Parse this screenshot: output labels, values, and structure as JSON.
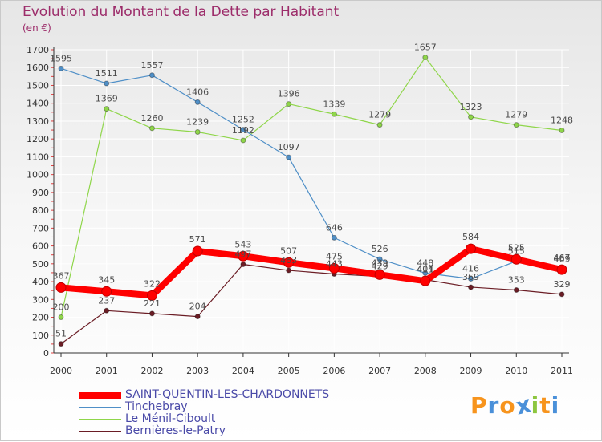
{
  "header": {
    "title": "Evolution du Montant de la Dette par Habitant",
    "subtitle": "(en €)"
  },
  "brand": {
    "name": "Proxiti",
    "letters": [
      "P",
      "r",
      "o",
      "x",
      "i",
      "t",
      "i"
    ],
    "letter_colors": [
      "#f7941d",
      "#4a90d9",
      "#f7941d",
      "#4a90d9",
      "#8dc63f",
      "#f7941d",
      "#4a90d9"
    ]
  },
  "colors": {
    "title": "#9c2c6a",
    "legend_text": "#4a4aa8",
    "axis": "#333333",
    "gridline": "#ffffff"
  },
  "chart_data": {
    "type": "line",
    "title": "Evolution du Montant de la Dette par Habitant",
    "ylabel": "(en €)",
    "xlabel": "",
    "x": [
      "2000",
      "2001",
      "2002",
      "2003",
      "2004",
      "2005",
      "2006",
      "2007",
      "2008",
      "2009",
      "2010",
      "2011"
    ],
    "ylim": [
      0,
      1700
    ],
    "yticks": [
      0,
      100,
      200,
      300,
      400,
      500,
      600,
      700,
      800,
      900,
      1000,
      1100,
      1200,
      1300,
      1400,
      1500,
      1600,
      1700
    ],
    "grid": true,
    "legend_position": "bottom-left",
    "series": [
      {
        "name": "SAINT-QUENTIN-LES-CHARDONNETS",
        "color": "#ff0000",
        "emphasis": "thick",
        "values": [
          367,
          345,
          322,
          571,
          543,
          507,
          475,
          439,
          404,
          584,
          525,
          467
        ]
      },
      {
        "name": "Tinchebray",
        "color": "#4f8fc7",
        "emphasis": "normal",
        "values": [
          1595,
          1511,
          1557,
          1406,
          1252,
          1097,
          646,
          526,
          448,
          416,
          515,
          469
        ]
      },
      {
        "name": "Le Ménil-Ciboult",
        "color": "#8fd64a",
        "emphasis": "normal",
        "values": [
          200,
          1369,
          1260,
          1239,
          1192,
          1396,
          1339,
          1279,
          1657,
          1323,
          1279,
          1248
        ]
      },
      {
        "name": "Bernières-le-Patry",
        "color": "#6b1d25",
        "emphasis": "normal",
        "values": [
          51,
          237,
          221,
          204,
          497,
          463,
          443,
          429,
          411,
          369,
          353,
          329
        ]
      }
    ]
  }
}
